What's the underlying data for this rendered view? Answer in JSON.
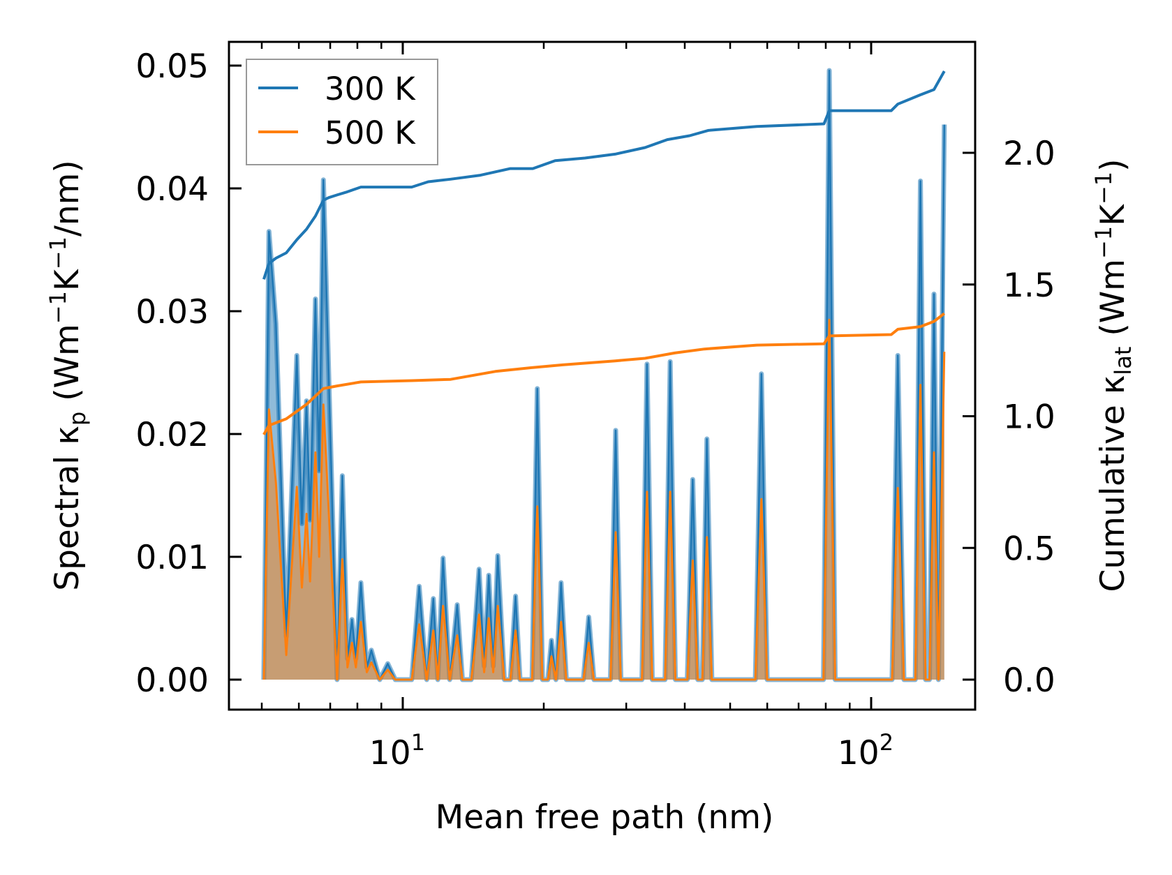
{
  "chart_data": {
    "type": "line",
    "xlabel": "Mean free path (nm)",
    "xscale": "log",
    "xlim": [
      4.25,
      167
    ],
    "ylabel_left": {
      "main": "Spectral κ",
      "sub": "p",
      "unit_open": " (Wm",
      "sup1": "−1",
      "mid": "K",
      "sup2": "−1",
      "unit_close": "/nm)"
    },
    "ylabel_right": {
      "main": "Cumulative κ",
      "sub": "lat",
      "unit_open": " (Wm",
      "sup1": "−1",
      "mid": "K",
      "sup2": "−1",
      "unit_close": ")"
    },
    "ylim_left": [
      0,
      0.05
    ],
    "ylim_right": [
      0,
      2.0
    ],
    "x_ticks": [
      {
        "value": 10,
        "base": "10",
        "exp": "1"
      },
      {
        "value": 100,
        "base": "10",
        "exp": "2"
      }
    ],
    "x_minor_ticks": [
      5,
      6,
      7,
      8,
      9,
      20,
      30,
      40,
      50,
      60,
      70,
      80,
      90
    ],
    "y_left_ticks": [
      "0.00",
      "0.01",
      "0.02",
      "0.03",
      "0.04",
      "0.05"
    ],
    "y_right_ticks": [
      "0.0",
      "0.5",
      "1.0",
      "1.5",
      "2.0"
    ],
    "legend": {
      "position": "top-left",
      "entries": [
        {
          "label": "300 K",
          "color": "#1f77b4"
        },
        {
          "label": "500 K",
          "color": "#ff7f0e"
        }
      ]
    },
    "grid": false,
    "spectral": {
      "columns": [
        "mfp_nm",
        "kappa_300K",
        "kappa_500K"
      ],
      "points": [
        [
          5.05,
          0,
          0
        ],
        [
          5.18,
          0.0365,
          0.022
        ],
        [
          5.36,
          0.029,
          0.016
        ],
        [
          5.64,
          0.0035,
          0.002
        ],
        [
          5.94,
          0.0264,
          0.0157
        ],
        [
          6.09,
          0.0127,
          0.0075
        ],
        [
          6.23,
          0.0227,
          0.0135
        ],
        [
          6.34,
          0.013,
          0.008
        ],
        [
          6.51,
          0.031,
          0.0185
        ],
        [
          6.63,
          0.017,
          0.01
        ],
        [
          6.77,
          0.0407,
          0.0224
        ],
        [
          7.24,
          0,
          0
        ],
        [
          7.43,
          0.0166,
          0.0098
        ],
        [
          7.62,
          0.0017,
          0.001
        ],
        [
          7.79,
          0.0049,
          0.003
        ],
        [
          7.94,
          0.0017,
          0.001
        ],
        [
          8.14,
          0.0079,
          0.0047
        ],
        [
          8.38,
          0.001,
          0.0006
        ],
        [
          8.57,
          0.0024,
          0.0014
        ],
        [
          8.93,
          0,
          0
        ],
        [
          9.29,
          0.0013,
          0.0008
        ],
        [
          9.64,
          0,
          0
        ],
        [
          10.45,
          0,
          0
        ],
        [
          10.84,
          0.0076,
          0.0045
        ],
        [
          11.25,
          0,
          0
        ],
        [
          11.62,
          0.0066,
          0.004
        ],
        [
          11.88,
          0,
          0
        ],
        [
          12.19,
          0.0099,
          0.006
        ],
        [
          12.6,
          0,
          0
        ],
        [
          13.07,
          0.0061,
          0.0036
        ],
        [
          13.41,
          0,
          0
        ],
        [
          14.0,
          0,
          0
        ],
        [
          14.55,
          0.009,
          0.0053
        ],
        [
          14.92,
          0.0011,
          0.0006
        ],
        [
          15.26,
          0.0085,
          0.005
        ],
        [
          15.6,
          0.0011,
          0.0006
        ],
        [
          15.95,
          0.0101,
          0.006
        ],
        [
          16.48,
          0,
          0
        ],
        [
          16.97,
          0,
          0
        ],
        [
          17.41,
          0.0068,
          0.004
        ],
        [
          17.8,
          0,
          0
        ],
        [
          18.88,
          0,
          0
        ],
        [
          19.37,
          0.0237,
          0.0141
        ],
        [
          19.88,
          0,
          0
        ],
        [
          20.4,
          0,
          0
        ],
        [
          20.77,
          0.0032,
          0.0019
        ],
        [
          21.23,
          0,
          0
        ],
        [
          21.78,
          0.0079,
          0.0047
        ],
        [
          22.35,
          0,
          0
        ],
        [
          24.3,
          0,
          0
        ],
        [
          24.95,
          0.0051,
          0.003
        ],
        [
          25.6,
          0,
          0
        ],
        [
          27.76,
          0,
          0
        ],
        [
          28.48,
          0.0203,
          0.012
        ],
        [
          29.22,
          0,
          0
        ],
        [
          32.4,
          0,
          0
        ],
        [
          33.23,
          0.0257,
          0.0153
        ],
        [
          34.1,
          0,
          0
        ],
        [
          36.3,
          0,
          0
        ],
        [
          37.24,
          0.0259,
          0.0153
        ],
        [
          38.2,
          0,
          0
        ],
        [
          40.5,
          0,
          0
        ],
        [
          41.6,
          0.0163,
          0.0097
        ],
        [
          42.66,
          0,
          0
        ],
        [
          43.6,
          0,
          0
        ],
        [
          44.6,
          0.0196,
          0.0116
        ],
        [
          45.7,
          0,
          0
        ],
        [
          56.6,
          0,
          0
        ],
        [
          58.3,
          0.0249,
          0.0147
        ],
        [
          60,
          0,
          0
        ],
        [
          79.1,
          0,
          0
        ],
        [
          81.4,
          0.0496,
          0.0293
        ],
        [
          83.8,
          0,
          0
        ],
        [
          110.8,
          0,
          0
        ],
        [
          114,
          0.0264,
          0.0156
        ],
        [
          117.5,
          0,
          0
        ],
        [
          124.2,
          0,
          0
        ],
        [
          127.4,
          0.0406,
          0.024
        ],
        [
          130.7,
          0,
          0
        ],
        [
          133.2,
          0,
          0
        ],
        [
          136.2,
          0.0314,
          0.0185
        ],
        [
          139.2,
          0,
          0
        ],
        [
          143.3,
          0.0452,
          0.0267
        ]
      ]
    },
    "cumulative": [
      {
        "name": "300 K",
        "color": "#1f77b4",
        "points": [
          [
            5.05,
            1.52
          ],
          [
            5.18,
            1.58
          ],
          [
            5.36,
            1.6
          ],
          [
            5.64,
            1.62
          ],
          [
            5.94,
            1.67
          ],
          [
            6.23,
            1.71
          ],
          [
            6.51,
            1.76
          ],
          [
            6.77,
            1.82
          ],
          [
            6.95,
            1.83
          ],
          [
            7.24,
            1.84
          ],
          [
            7.56,
            1.85
          ],
          [
            8.14,
            1.87
          ],
          [
            8.76,
            1.87
          ],
          [
            10.45,
            1.87
          ],
          [
            11.33,
            1.89
          ],
          [
            12.65,
            1.9
          ],
          [
            14.65,
            1.915
          ],
          [
            16.97,
            1.94
          ],
          [
            18.95,
            1.94
          ],
          [
            21.15,
            1.97
          ],
          [
            24.5,
            1.98
          ],
          [
            28.4,
            1.995
          ],
          [
            32.9,
            2.02
          ],
          [
            36.7,
            2.05
          ],
          [
            40.96,
            2.065
          ],
          [
            44.9,
            2.085
          ],
          [
            57.0,
            2.1
          ],
          [
            79.3,
            2.11
          ],
          [
            81.4,
            2.16
          ],
          [
            110.4,
            2.16
          ],
          [
            114,
            2.185
          ],
          [
            127.4,
            2.22
          ],
          [
            136.2,
            2.24
          ],
          [
            143.3,
            2.31
          ]
        ]
      },
      {
        "name": "500 K",
        "color": "#ff7f0e",
        "points": [
          [
            5.05,
            0.93
          ],
          [
            5.18,
            0.965
          ],
          [
            5.64,
            0.99
          ],
          [
            6.23,
            1.045
          ],
          [
            6.77,
            1.105
          ],
          [
            7.24,
            1.115
          ],
          [
            8.14,
            1.13
          ],
          [
            10.45,
            1.135
          ],
          [
            12.65,
            1.14
          ],
          [
            15.77,
            1.17
          ],
          [
            18.95,
            1.185
          ],
          [
            21.95,
            1.195
          ],
          [
            28.4,
            1.21
          ],
          [
            32.9,
            1.22
          ],
          [
            38.05,
            1.24
          ],
          [
            44.06,
            1.255
          ],
          [
            57.0,
            1.27
          ],
          [
            79.3,
            1.275
          ],
          [
            81.4,
            1.305
          ],
          [
            110.4,
            1.31
          ],
          [
            114,
            1.33
          ],
          [
            127.4,
            1.34
          ],
          [
            136.2,
            1.36
          ],
          [
            143.3,
            1.39
          ]
        ]
      }
    ]
  }
}
